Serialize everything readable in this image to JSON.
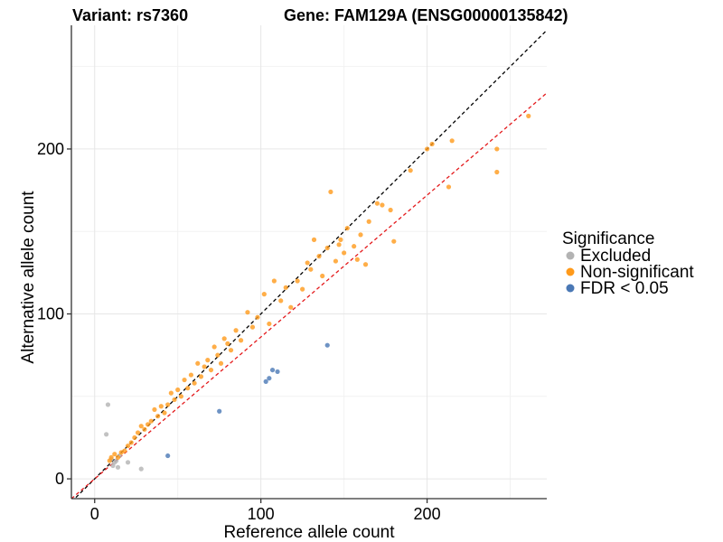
{
  "chart_data": {
    "type": "scatter",
    "title_left": "Variant: rs7360",
    "title_right": "Gene: FAM129A (ENSG00000135842)",
    "xlabel": "Reference allele count",
    "ylabel": "Alternative allele count",
    "xlim": [
      -14,
      272
    ],
    "ylim": [
      -12,
      275
    ],
    "x_ticks": [
      0,
      100,
      200
    ],
    "y_ticks": [
      0,
      100,
      200
    ],
    "x_tick_labels": [
      "0",
      "100",
      "200"
    ],
    "y_tick_labels": [
      "0",
      "100",
      "200"
    ],
    "x_minor": [
      50,
      150,
      250
    ],
    "y_minor": [
      50,
      150,
      250
    ],
    "grid": true,
    "legend_position": "right",
    "legend_title": "Significance",
    "series": [
      {
        "name": "Excluded",
        "color": "#b3b3b3",
        "points": [
          [
            8,
            45
          ],
          [
            7,
            27
          ],
          [
            10,
            12
          ],
          [
            12,
            10
          ],
          [
            11,
            8
          ],
          [
            14,
            7
          ],
          [
            13,
            11
          ],
          [
            20,
            10
          ],
          [
            28,
            6
          ],
          [
            15,
            14
          ]
        ]
      },
      {
        "name": "Non-significant",
        "color": "#ff9a1a",
        "points": [
          [
            261,
            220
          ],
          [
            242,
            200
          ],
          [
            242,
            186
          ],
          [
            215,
            205
          ],
          [
            213,
            177
          ],
          [
            203,
            203
          ],
          [
            200,
            200
          ],
          [
            190,
            187
          ],
          [
            178,
            163
          ],
          [
            180,
            144
          ],
          [
            173,
            166
          ],
          [
            170,
            167
          ],
          [
            165,
            156
          ],
          [
            160,
            148
          ],
          [
            156,
            141
          ],
          [
            150,
            137
          ],
          [
            147,
            142
          ],
          [
            142,
            174
          ],
          [
            140,
            140
          ],
          [
            137,
            123
          ],
          [
            130,
            127
          ],
          [
            163,
            130
          ],
          [
            158,
            133
          ],
          [
            152,
            152
          ],
          [
            148,
            145
          ],
          [
            145,
            132
          ],
          [
            135,
            135
          ],
          [
            132,
            145
          ],
          [
            128,
            131
          ],
          [
            125,
            115
          ],
          [
            122,
            120
          ],
          [
            118,
            104
          ],
          [
            115,
            116
          ],
          [
            112,
            108
          ],
          [
            108,
            120
          ],
          [
            105,
            94
          ],
          [
            102,
            112
          ],
          [
            98,
            98
          ],
          [
            95,
            92
          ],
          [
            92,
            101
          ],
          [
            88,
            84
          ],
          [
            85,
            90
          ],
          [
            82,
            78
          ],
          [
            80,
            82
          ],
          [
            78,
            85
          ],
          [
            76,
            70
          ],
          [
            74,
            75
          ],
          [
            72,
            80
          ],
          [
            70,
            66
          ],
          [
            68,
            72
          ],
          [
            66,
            68
          ],
          [
            64,
            62
          ],
          [
            62,
            70
          ],
          [
            60,
            58
          ],
          [
            58,
            63
          ],
          [
            56,
            55
          ],
          [
            54,
            60
          ],
          [
            52,
            50
          ],
          [
            50,
            54
          ],
          [
            48,
            48
          ],
          [
            46,
            52
          ],
          [
            44,
            45
          ],
          [
            42,
            40
          ],
          [
            40,
            44
          ],
          [
            38,
            38
          ],
          [
            36,
            42
          ],
          [
            34,
            35
          ],
          [
            32,
            33
          ],
          [
            30,
            30
          ],
          [
            28,
            32
          ],
          [
            26,
            28
          ],
          [
            24,
            25
          ],
          [
            22,
            22
          ],
          [
            20,
            20
          ],
          [
            18,
            17
          ],
          [
            16,
            16
          ],
          [
            14,
            13
          ],
          [
            12,
            15
          ],
          [
            10,
            13
          ],
          [
            9,
            11
          ]
        ]
      },
      {
        "name": "FDR < 0.05",
        "color": "#4a78b5",
        "points": [
          [
            140,
            81
          ],
          [
            107,
            66
          ],
          [
            110,
            65
          ],
          [
            105,
            61
          ],
          [
            103,
            59
          ],
          [
            75,
            41
          ],
          [
            44,
            14
          ]
        ]
      }
    ],
    "diagonal_lines": [
      {
        "slope": 1.0,
        "color": "#000000"
      },
      {
        "slope": 0.86,
        "color": "#e41a1c"
      }
    ]
  }
}
